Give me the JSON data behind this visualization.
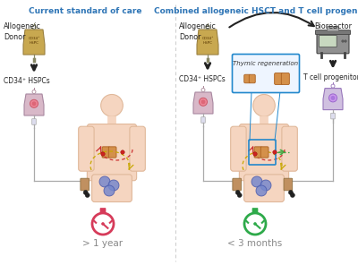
{
  "title_left": "Current standard of care",
  "title_right": "Combined allogeneic HSCT and T cell progenitors",
  "title_color": "#2E75B6",
  "bg_color": "#FFFFFF",
  "left_label_donor": "Allogeneic\nDonor",
  "left_label_cd34": "CD34⁺ HSPCs",
  "right_label_donor": "Allogeneic\nDonor",
  "right_label_cd34": "CD34⁺ HSPCs",
  "right_label_bioreactor": "Bioreactor",
  "right_label_tcell": "T cell progenitors",
  "right_label_thymic": "Thymic regeneration",
  "left_time_label": "> 1 year",
  "right_time_label": "< 3 months",
  "left_time_color": "#D63B5A",
  "right_time_color": "#2EAA4A",
  "body_color": "#F5D5C0",
  "body_outline": "#E0B89A",
  "bag_gold_color": "#C8A850",
  "bag_gold_ec": "#9A8040",
  "bag_pink_color": "#D8B8C8",
  "bag_pink_ec": "#A888A0",
  "bag_purple_color": "#D0C0E0",
  "bag_purple_ec": "#9877BB",
  "thymus_color": "#D4904A",
  "thymus_outline": "#AA6020",
  "bioreactor_color": "#909090",
  "bioreactor_screen": "#C8D8C0",
  "thymus_box_color": "#2288CC",
  "thymus_box_bg": "#EEF5FF",
  "arrow_dark": "#222222",
  "dashed_red": "#CC3333",
  "dashed_yellow": "#C8A800",
  "dashed_green": "#44AA44",
  "blue_cell_color": "#7788CC",
  "blue_cell_ec": "#4455AA",
  "red_dot_color": "#CC2222",
  "dark_dot_color": "#222222",
  "iv_tube_color": "#AAAAAA",
  "band_color": "#C09060",
  "band_ec": "#907040"
}
